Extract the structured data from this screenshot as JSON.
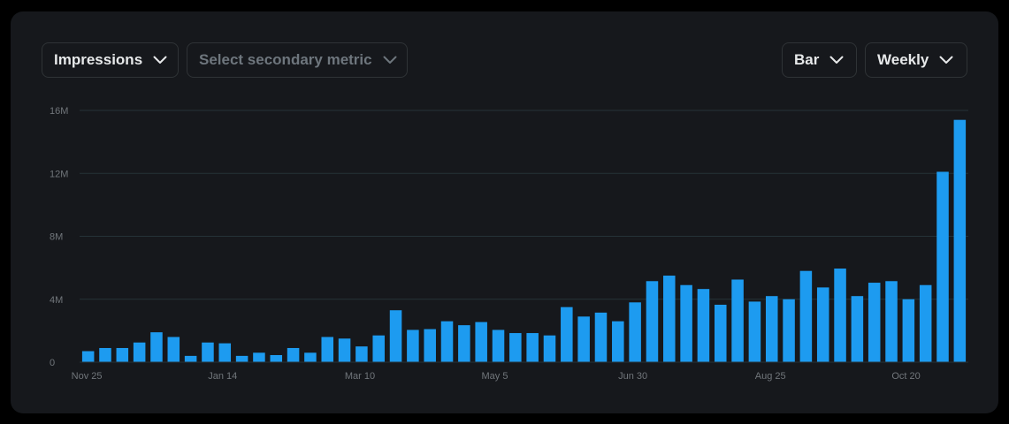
{
  "controls": {
    "primary_metric": "Impressions",
    "secondary_metric_placeholder": "Select secondary metric",
    "chart_type": "Bar",
    "period": "Weekly"
  },
  "colors": {
    "bar": "#1d9bf0",
    "grid": "#253237",
    "axis_text": "#71767b",
    "card_bg": "#16181c"
  },
  "chart_data": {
    "type": "bar",
    "y_ticks": [
      {
        "value": 0,
        "label": "0"
      },
      {
        "value": 4000000,
        "label": "4M"
      },
      {
        "value": 8000000,
        "label": "8M"
      },
      {
        "value": 12000000,
        "label": "12M"
      },
      {
        "value": 16000000,
        "label": "16M"
      }
    ],
    "ylim": [
      0,
      16000000
    ],
    "x_tick_labels": [
      {
        "index": 0,
        "label": "Nov 25"
      },
      {
        "index": 8,
        "label": "Jan 14"
      },
      {
        "index": 16,
        "label": "Mar 10"
      },
      {
        "index": 24,
        "label": "May 5"
      },
      {
        "index": 32,
        "label": "Jun 30"
      },
      {
        "index": 40,
        "label": "Aug 25"
      },
      {
        "index": 48,
        "label": "Oct 20"
      }
    ],
    "grid": true,
    "series": [
      {
        "values": [
          0.7,
          0.9,
          0.9,
          1.25,
          1.9,
          1.6,
          0.4,
          1.25,
          1.2,
          0.4,
          0.6,
          0.45,
          0.9,
          0.6,
          1.6,
          1.5,
          1.0,
          1.7,
          3.3,
          2.05,
          2.1,
          2.6,
          2.35,
          2.55,
          2.05,
          1.85,
          1.85,
          1.7,
          3.5,
          2.9,
          3.15,
          2.6,
          3.8,
          5.15,
          5.5,
          4.9,
          4.65,
          3.65,
          5.25,
          3.85,
          4.2,
          4.0,
          5.8,
          4.75,
          5.95,
          4.2,
          5.05,
          5.15,
          4.0,
          4.9,
          12.1,
          15.4
        ],
        "unit_multiplier": 1000000
      }
    ]
  }
}
